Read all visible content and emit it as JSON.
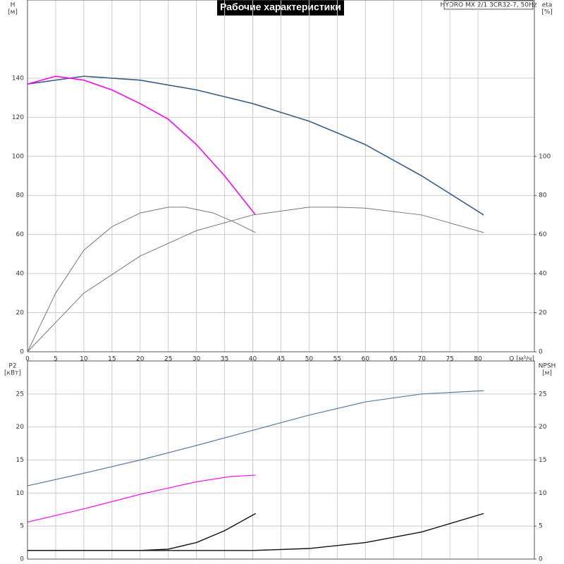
{
  "chart_data": [
    {
      "type": "line",
      "title": "Рабочие характеристики",
      "model": "HYDRO MX 2/1 3CR32-7, 50Hz",
      "ylabel": "H",
      "yunit": "[м]",
      "y2label": "eta",
      "y2unit": "[%]",
      "xlabel": "Q [м³/ч]",
      "xlim": [
        0,
        90
      ],
      "xticks": [
        0,
        5,
        10,
        15,
        20,
        25,
        30,
        35,
        40,
        45,
        50,
        55,
        60,
        65,
        70,
        75,
        80
      ],
      "show_xtick_labels": true,
      "ylim": [
        0,
        180
      ],
      "yticks": [
        0,
        20,
        40,
        60,
        80,
        100,
        120,
        140
      ],
      "y2lim": [
        0,
        180
      ],
      "y2ticks": [
        0,
        20,
        40,
        60,
        80,
        100
      ],
      "grid": true,
      "series": [
        {
          "color": "#3a5f85",
          "width": 1.6,
          "x": [
            0,
            10,
            20,
            30,
            40,
            50,
            60,
            70,
            81
          ],
          "values": [
            137,
            141,
            139,
            134,
            127,
            118,
            106,
            90,
            70
          ]
        },
        {
          "color": "#ff00ff",
          "width": 1.6,
          "x": [
            0,
            5,
            10,
            15,
            20,
            25,
            30,
            35,
            40.5
          ],
          "values": [
            137,
            141,
            139,
            134,
            127,
            119,
            106,
            90,
            70
          ]
        },
        {
          "color": "#777777",
          "width": 1,
          "axis": "y2",
          "x": [
            0,
            5,
            10,
            15,
            20,
            25,
            28,
            33,
            37,
            40.5
          ],
          "values": [
            0,
            30,
            52,
            64,
            71,
            74,
            74,
            71,
            66,
            61
          ]
        },
        {
          "color": "#777777",
          "width": 1,
          "axis": "y2",
          "x": [
            0,
            10,
            20,
            30,
            40,
            50,
            55,
            60,
            70,
            81
          ],
          "values": [
            0,
            30,
            49,
            62,
            70,
            74,
            74,
            73.5,
            70,
            61
          ]
        }
      ]
    },
    {
      "type": "line",
      "ylabel": "P2",
      "yunit": "[кВт]",
      "y2label": "NPSH",
      "y2unit": "[м]",
      "xlim": [
        0,
        90
      ],
      "xticks": [
        0,
        5,
        10,
        15,
        20,
        25,
        30,
        35,
        40,
        45,
        50,
        55,
        60,
        65,
        70,
        75,
        80
      ],
      "show_xtick_labels": false,
      "ylim": [
        0,
        30
      ],
      "yticks": [
        0,
        5,
        10,
        15,
        20,
        25
      ],
      "y2lim": [
        0,
        30
      ],
      "y2ticks": [
        0,
        5,
        10,
        15,
        20,
        25
      ],
      "grid": true,
      "series": [
        {
          "color": "#5a7aa8",
          "width": 1.2,
          "x": [
            0,
            10,
            20,
            30,
            40,
            50,
            60,
            70,
            81
          ],
          "values": [
            11.1,
            13,
            15,
            17.2,
            19.5,
            21.8,
            23.8,
            25,
            25.5
          ]
        },
        {
          "color": "#ff00ff",
          "width": 1.2,
          "x": [
            0,
            10,
            20,
            30,
            36,
            40.5
          ],
          "values": [
            5.6,
            7.6,
            9.8,
            11.7,
            12.5,
            12.7
          ]
        },
        {
          "color": "#111111",
          "width": 1.4,
          "axis": "y2",
          "x": [
            0,
            20,
            25,
            30,
            35,
            40.5
          ],
          "values": [
            1.3,
            1.3,
            1.5,
            2.5,
            4.3,
            6.9
          ]
        },
        {
          "color": "#111111",
          "width": 1.4,
          "axis": "y2",
          "x": [
            0,
            40,
            50,
            60,
            70,
            81
          ],
          "values": [
            1.3,
            1.3,
            1.6,
            2.5,
            4.1,
            6.9
          ]
        }
      ]
    }
  ]
}
